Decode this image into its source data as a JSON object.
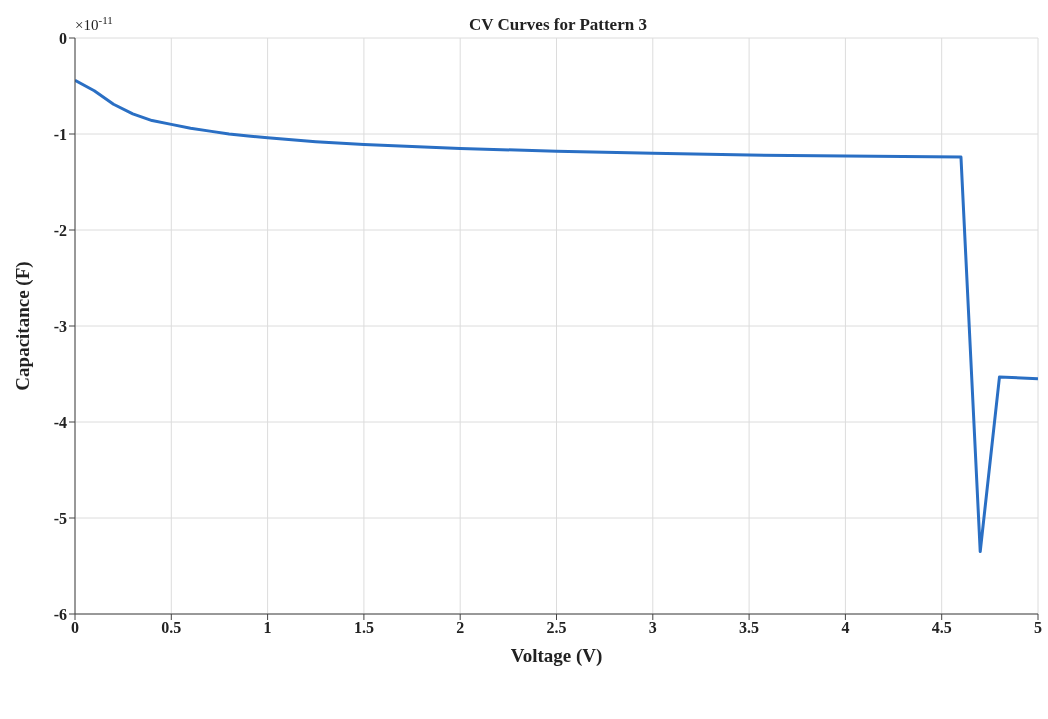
{
  "chart_data": {
    "type": "line",
    "title": "CV Curves for Pattern 3",
    "xlabel": "Voltage (V)",
    "ylabel": "Capacitance (F)",
    "annotations": [
      "×10$^{-11}$"
    ],
    "x": [
      0,
      0.1,
      0.2,
      0.3,
      0.4,
      0.5,
      0.6,
      0.7,
      0.8,
      0.9,
      1,
      1.25,
      1.5,
      2,
      2.5,
      3,
      3.5,
      4,
      4.6,
      4.7,
      4.8,
      5
    ],
    "series": [
      {
        "color": "#2a6fc4",
        "values": [
          -0.44,
          -0.55,
          -0.69,
          -0.79,
          -0.86,
          -0.9,
          -0.94,
          -0.97,
          -1.0,
          -1.02,
          -1.04,
          -1.08,
          -1.11,
          -1.15,
          -1.18,
          -1.2,
          -1.22,
          -1.23,
          -1.24,
          -5.35,
          -3.53,
          -3.55
        ]
      }
    ],
    "xlim": [
      0,
      5
    ],
    "xticks": [
      0,
      0.5,
      1,
      1.5,
      2,
      2.5,
      3,
      3.5,
      4,
      4.5,
      5
    ],
    "ylim": [
      -6,
      0
    ],
    "yticks": [
      -6,
      -5,
      -4,
      -3,
      -2,
      -1,
      0
    ],
    "grid": true,
    "marker": "none",
    "line_style": "solid"
  }
}
